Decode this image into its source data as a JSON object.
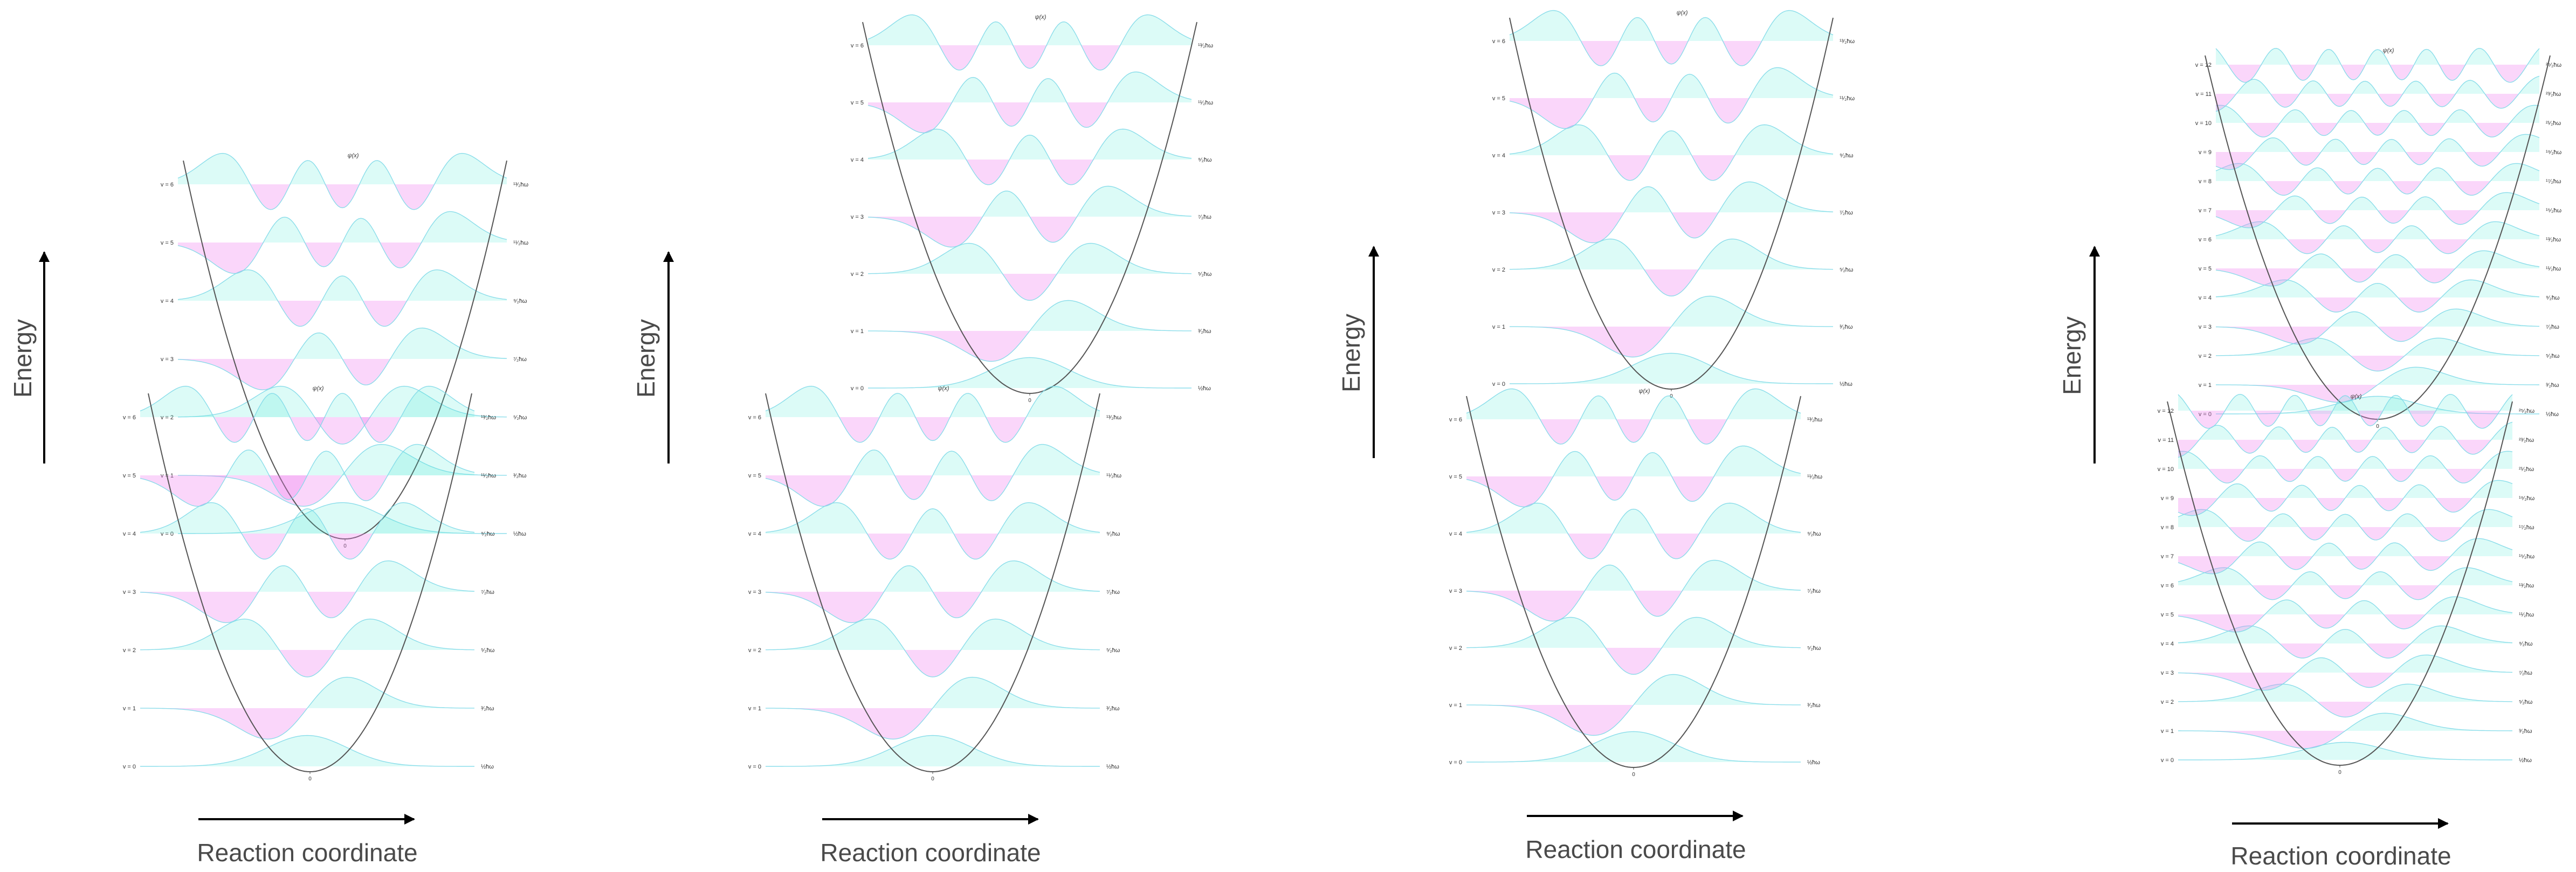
{
  "colors": {
    "positive_lobe": "#3ee8d0",
    "negative_lobe": "#f07ff0",
    "potential_curve": "#555555",
    "axis_arrow": "#000000",
    "axis_text": "#4a4a4a"
  },
  "axes": {
    "energy_label": "Energy",
    "reaction_label": "Reaction coordinate"
  },
  "psi_label": "ψ(x)",
  "zero_label": "0",
  "panels": [
    {
      "id": "panel-1",
      "levels": {
        "front": [
          "v = 0",
          "v = 1",
          "v = 2",
          "v = 3",
          "v = 4",
          "v = 5",
          "v = 6"
        ],
        "back": [
          "v = 0",
          "v = 1",
          "v = 2",
          "v = 3",
          "v = 4",
          "v = 5",
          "v = 6"
        ]
      },
      "energies": {
        "front": [
          "½ħω",
          "³⁄₂ħω",
          "⁵⁄₂ħω",
          "⁷⁄₂ħω",
          "⁹⁄₂ħω",
          "¹¹⁄₂ħω",
          "¹³⁄₂ħω"
        ],
        "back": [
          "½ħω",
          "³⁄₂ħω",
          "⁵⁄₂ħω",
          "⁷⁄₂ħω",
          "⁹⁄₂ħω",
          "¹¹⁄₂ħω",
          "¹³⁄₂ħω"
        ]
      }
    },
    {
      "id": "panel-2",
      "levels": {
        "front": [
          "v = 0",
          "v = 1",
          "v = 2",
          "v = 3",
          "v = 4",
          "v = 5",
          "v = 6"
        ],
        "back": [
          "v = 0",
          "v = 1",
          "v = 2",
          "v = 3",
          "v = 4",
          "v = 5",
          "v = 6"
        ]
      },
      "energies": {
        "front": [
          "½ħω",
          "³⁄₂ħω",
          "⁵⁄₂ħω",
          "⁷⁄₂ħω",
          "⁹⁄₂ħω",
          "¹¹⁄₂ħω",
          "¹³⁄₂ħω"
        ],
        "back": [
          "½ħω",
          "³⁄₂ħω",
          "⁵⁄₂ħω",
          "⁷⁄₂ħω",
          "⁹⁄₂ħω",
          "¹¹⁄₂ħω",
          "¹³⁄₂ħω"
        ]
      }
    },
    {
      "id": "panel-3",
      "levels": {
        "front": [
          "v = 0",
          "v = 1",
          "v = 2",
          "v = 3",
          "v = 4",
          "v = 5",
          "v = 6"
        ],
        "back": [
          "v = 0",
          "v = 1",
          "v = 2",
          "v = 3",
          "v = 4",
          "v = 5",
          "v = 6"
        ]
      },
      "energies": {
        "front": [
          "½ħω",
          "³⁄₂ħω",
          "⁵⁄₂ħω",
          "⁷⁄₂ħω",
          "⁹⁄₂ħω",
          "¹¹⁄₂ħω",
          "¹³⁄₂ħω"
        ],
        "back": [
          "½ħω",
          "³⁄₂ħω",
          "⁵⁄₂ħω",
          "⁷⁄₂ħω",
          "⁹⁄₂ħω",
          "¹¹⁄₂ħω",
          "¹³⁄₂ħω"
        ]
      }
    },
    {
      "id": "panel-4",
      "levels": {
        "front": [
          "v = 0",
          "v = 1",
          "v = 2",
          "v = 3",
          "v = 4",
          "v = 5",
          "v = 6",
          "v = 7",
          "v = 8",
          "v = 9",
          "v = 10",
          "v = 11",
          "v = 12"
        ],
        "back": [
          "v = 0",
          "v = 1",
          "v = 2",
          "v = 3",
          "v = 4",
          "v = 5",
          "v = 6",
          "v = 7",
          "v = 8",
          "v = 9",
          "v = 10",
          "v = 11",
          "v = 12"
        ]
      },
      "energies": {
        "front": [
          "½ħω",
          "³⁄₂ħω",
          "⁵⁄₂ħω",
          "⁷⁄₂ħω",
          "⁹⁄₂ħω",
          "¹¹⁄₂ħω",
          "¹³⁄₂ħω",
          "¹⁵⁄₂ħω",
          "¹⁷⁄₂ħω",
          "¹⁹⁄₂ħω",
          "²¹⁄₂ħω",
          "²³⁄₂ħω",
          "²⁵⁄₂ħω"
        ],
        "back": [
          "½ħω",
          "³⁄₂ħω",
          "⁵⁄₂ħω",
          "⁷⁄₂ħω",
          "⁹⁄₂ħω",
          "¹¹⁄₂ħω",
          "¹³⁄₂ħω",
          "¹⁵⁄₂ħω",
          "¹⁷⁄₂ħω",
          "¹⁹⁄₂ħω",
          "²¹⁄₂ħω",
          "²³⁄₂ħω",
          "²⁵⁄₂ħω"
        ]
      }
    }
  ]
}
